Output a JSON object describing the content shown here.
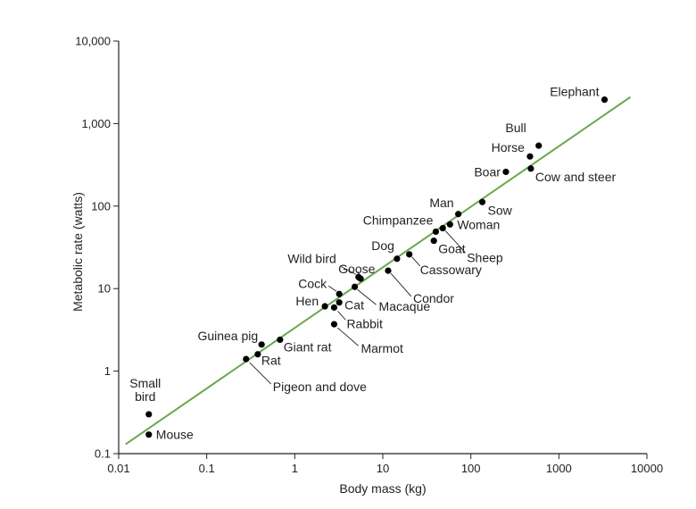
{
  "chart_data": {
    "type": "scatter",
    "xlabel": "Body mass (kg)",
    "ylabel": "Metabolic rate (watts)",
    "xscale": "log",
    "yscale": "log",
    "xlim": [
      0.01,
      10000
    ],
    "ylim": [
      0.1,
      10000
    ],
    "x_ticks": [
      {
        "v": 0.01,
        "label": "0.01"
      },
      {
        "v": 0.1,
        "label": "0.1"
      },
      {
        "v": 1,
        "label": "1"
      },
      {
        "v": 10,
        "label": "10"
      },
      {
        "v": 100,
        "label": "100"
      },
      {
        "v": 1000,
        "label": "1000"
      },
      {
        "v": 10000,
        "label": "10000"
      }
    ],
    "y_ticks": [
      {
        "v": 0.1,
        "label": "0.1"
      },
      {
        "v": 1,
        "label": "1"
      },
      {
        "v": 10,
        "label": "10"
      },
      {
        "v": 100,
        "label": "100"
      },
      {
        "v": 1000,
        "label": "1,000"
      },
      {
        "v": 10000,
        "label": "10,000"
      }
    ],
    "grid": false,
    "points": [
      {
        "label": "Small bird",
        "x": 0.022,
        "y": 0.3
      },
      {
        "label": "Mouse",
        "x": 0.022,
        "y": 0.17
      },
      {
        "label": "Pigeon and dove",
        "x": 0.28,
        "y": 1.4
      },
      {
        "label": "Rat",
        "x": 0.38,
        "y": 1.6
      },
      {
        "label": "Guinea pig",
        "x": 0.42,
        "y": 2.1
      },
      {
        "label": "Giant rat",
        "x": 0.68,
        "y": 2.4
      },
      {
        "label": "Marmot",
        "x": 2.8,
        "y": 3.7
      },
      {
        "label": "Rabbit",
        "x": 2.8,
        "y": 5.9
      },
      {
        "label": "Hen",
        "x": 2.2,
        "y": 6.1
      },
      {
        "label": "Cat",
        "x": 3.2,
        "y": 6.8
      },
      {
        "label": "Cock",
        "x": 3.2,
        "y": 8.6
      },
      {
        "label": "Macaque",
        "x": 4.8,
        "y": 10.5
      },
      {
        "label": "Wild bird",
        "x": 5.3,
        "y": 13.8
      },
      {
        "label": "Goose",
        "x": 5.6,
        "y": 13.2
      },
      {
        "label": "Condor",
        "x": 11.5,
        "y": 16.5
      },
      {
        "label": "Dog",
        "x": 14.5,
        "y": 23
      },
      {
        "label": "Cassowary",
        "x": 20,
        "y": 26
      },
      {
        "label": "Goat",
        "x": 38,
        "y": 38
      },
      {
        "label": "Chimpanzee",
        "x": 40,
        "y": 49
      },
      {
        "label": "Sheep",
        "x": 48,
        "y": 54
      },
      {
        "label": "Woman",
        "x": 58,
        "y": 60
      },
      {
        "label": "Man",
        "x": 72,
        "y": 80
      },
      {
        "label": "Sow",
        "x": 135,
        "y": 112
      },
      {
        "label": "Boar",
        "x": 250,
        "y": 260
      },
      {
        "label": "Cow and steer",
        "x": 480,
        "y": 285
      },
      {
        "label": "Horse",
        "x": 470,
        "y": 400
      },
      {
        "label": "Bull",
        "x": 590,
        "y": 540
      },
      {
        "label": "Elephant",
        "x": 3300,
        "y": 1950
      }
    ],
    "fit_line": {
      "x": [
        0.012,
        6500
      ],
      "y": [
        0.13,
        2100
      ]
    },
    "colors": {
      "points": "#000000",
      "fit_line": "#6aa84f",
      "axes": "#222222"
    }
  }
}
